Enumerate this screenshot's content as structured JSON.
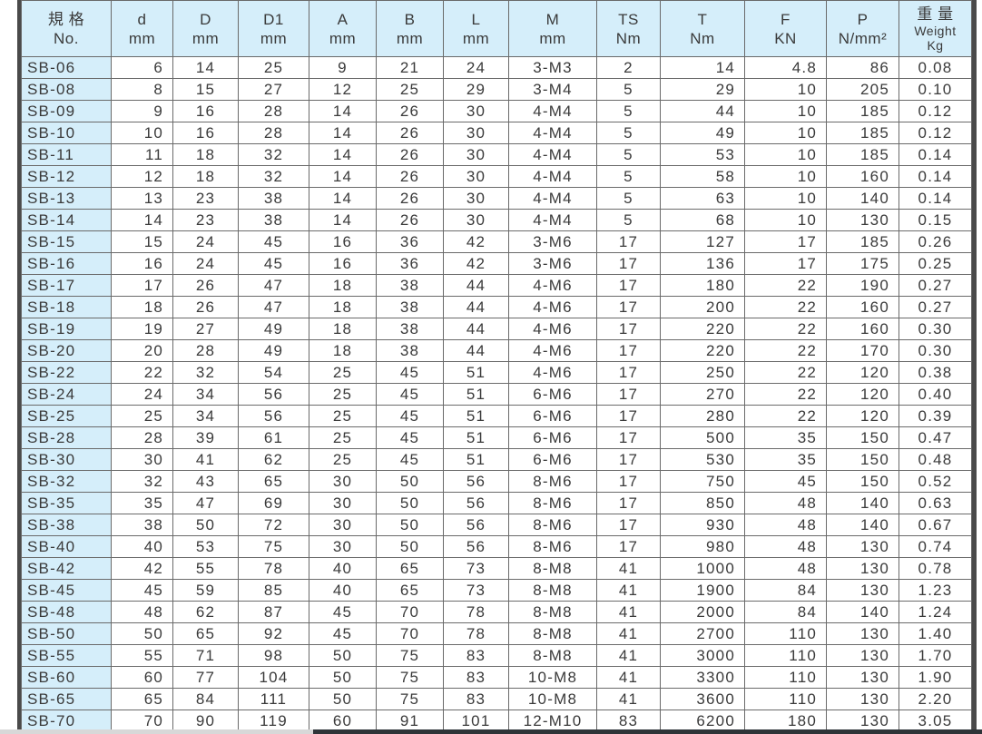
{
  "headers": [
    {
      "line1": "規 格",
      "line2": "No."
    },
    {
      "line1": "d",
      "line2": "mm"
    },
    {
      "line1": "D",
      "line2": "mm"
    },
    {
      "line1": "D1",
      "line2": "mm"
    },
    {
      "line1": "A",
      "line2": "mm"
    },
    {
      "line1": "B",
      "line2": "mm"
    },
    {
      "line1": "L",
      "line2": "mm"
    },
    {
      "line1": "M",
      "line2": "mm"
    },
    {
      "line1": "TS",
      "line2": "Nm"
    },
    {
      "line1": "T",
      "line2": "Nm"
    },
    {
      "line1": "F",
      "line2": "KN"
    },
    {
      "line1": "P",
      "line2": "N/mm²"
    },
    {
      "line1": "重 量",
      "line2": "Weight",
      "line3": "Kg"
    }
  ],
  "rows": [
    [
      "SB-06",
      "6",
      "14",
      "25",
      "9",
      "21",
      "24",
      "3-M3",
      "2",
      "14",
      "4.8",
      "86",
      "0.08"
    ],
    [
      "SB-08",
      "8",
      "15",
      "27",
      "12",
      "25",
      "29",
      "3-M4",
      "5",
      "29",
      "10",
      "205",
      "0.10"
    ],
    [
      "SB-09",
      "9",
      "16",
      "28",
      "14",
      "26",
      "30",
      "4-M4",
      "5",
      "44",
      "10",
      "185",
      "0.12"
    ],
    [
      "SB-10",
      "10",
      "16",
      "28",
      "14",
      "26",
      "30",
      "4-M4",
      "5",
      "49",
      "10",
      "185",
      "0.12"
    ],
    [
      "SB-11",
      "11",
      "18",
      "32",
      "14",
      "26",
      "30",
      "4-M4",
      "5",
      "53",
      "10",
      "185",
      "0.14"
    ],
    [
      "SB-12",
      "12",
      "18",
      "32",
      "14",
      "26",
      "30",
      "4-M4",
      "5",
      "58",
      "10",
      "160",
      "0.14"
    ],
    [
      "SB-13",
      "13",
      "23",
      "38",
      "14",
      "26",
      "30",
      "4-M4",
      "5",
      "63",
      "10",
      "140",
      "0.14"
    ],
    [
      "SB-14",
      "14",
      "23",
      "38",
      "14",
      "26",
      "30",
      "4-M4",
      "5",
      "68",
      "10",
      "130",
      "0.15"
    ],
    [
      "SB-15",
      "15",
      "24",
      "45",
      "16",
      "36",
      "42",
      "3-M6",
      "17",
      "127",
      "17",
      "185",
      "0.26"
    ],
    [
      "SB-16",
      "16",
      "24",
      "45",
      "16",
      "36",
      "42",
      "3-M6",
      "17",
      "136",
      "17",
      "175",
      "0.25"
    ],
    [
      "SB-17",
      "17",
      "26",
      "47",
      "18",
      "38",
      "44",
      "4-M6",
      "17",
      "180",
      "22",
      "190",
      "0.27"
    ],
    [
      "SB-18",
      "18",
      "26",
      "47",
      "18",
      "38",
      "44",
      "4-M6",
      "17",
      "200",
      "22",
      "160",
      "0.27"
    ],
    [
      "SB-19",
      "19",
      "27",
      "49",
      "18",
      "38",
      "44",
      "4-M6",
      "17",
      "220",
      "22",
      "160",
      "0.30"
    ],
    [
      "SB-20",
      "20",
      "28",
      "49",
      "18",
      "38",
      "44",
      "4-M6",
      "17",
      "220",
      "22",
      "170",
      "0.30"
    ],
    [
      "SB-22",
      "22",
      "32",
      "54",
      "25",
      "45",
      "51",
      "4-M6",
      "17",
      "250",
      "22",
      "120",
      "0.38"
    ],
    [
      "SB-24",
      "24",
      "34",
      "56",
      "25",
      "45",
      "51",
      "6-M6",
      "17",
      "270",
      "22",
      "120",
      "0.40"
    ],
    [
      "SB-25",
      "25",
      "34",
      "56",
      "25",
      "45",
      "51",
      "6-M6",
      "17",
      "280",
      "22",
      "120",
      "0.39"
    ],
    [
      "SB-28",
      "28",
      "39",
      "61",
      "25",
      "45",
      "51",
      "6-M6",
      "17",
      "500",
      "35",
      "150",
      "0.47"
    ],
    [
      "SB-30",
      "30",
      "41",
      "62",
      "25",
      "45",
      "51",
      "6-M6",
      "17",
      "530",
      "35",
      "150",
      "0.48"
    ],
    [
      "SB-32",
      "32",
      "43",
      "65",
      "30",
      "50",
      "56",
      "8-M6",
      "17",
      "750",
      "45",
      "150",
      "0.52"
    ],
    [
      "SB-35",
      "35",
      "47",
      "69",
      "30",
      "50",
      "56",
      "8-M6",
      "17",
      "850",
      "48",
      "140",
      "0.63"
    ],
    [
      "SB-38",
      "38",
      "50",
      "72",
      "30",
      "50",
      "56",
      "8-M6",
      "17",
      "930",
      "48",
      "140",
      "0.67"
    ],
    [
      "SB-40",
      "40",
      "53",
      "75",
      "30",
      "50",
      "56",
      "8-M6",
      "17",
      "980",
      "48",
      "130",
      "0.74"
    ],
    [
      "SB-42",
      "42",
      "55",
      "78",
      "40",
      "65",
      "73",
      "8-M8",
      "41",
      "1000",
      "48",
      "130",
      "0.78"
    ],
    [
      "SB-45",
      "45",
      "59",
      "85",
      "40",
      "65",
      "73",
      "8-M8",
      "41",
      "1900",
      "84",
      "130",
      "1.23"
    ],
    [
      "SB-48",
      "48",
      "62",
      "87",
      "45",
      "70",
      "78",
      "8-M8",
      "41",
      "2000",
      "84",
      "140",
      "1.24"
    ],
    [
      "SB-50",
      "50",
      "65",
      "92",
      "45",
      "70",
      "78",
      "8-M8",
      "41",
      "2700",
      "110",
      "130",
      "1.40"
    ],
    [
      "SB-55",
      "55",
      "71",
      "98",
      "50",
      "75",
      "83",
      "8-M8",
      "41",
      "3000",
      "110",
      "130",
      "1.70"
    ],
    [
      "SB-60",
      "60",
      "77",
      "104",
      "50",
      "75",
      "83",
      "10-M8",
      "41",
      "3300",
      "110",
      "130",
      "1.90"
    ],
    [
      "SB-65",
      "65",
      "84",
      "111",
      "50",
      "75",
      "83",
      "10-M8",
      "41",
      "3600",
      "110",
      "130",
      "2.20"
    ],
    [
      "SB-70",
      "70",
      "90",
      "119",
      "60",
      "91",
      "101",
      "12-M10",
      "83",
      "6200",
      "180",
      "130",
      "3.05"
    ]
  ],
  "colors": {
    "header_bg": "#d5eefa",
    "border": "#6a6a6a",
    "frame": "#4a4a4a",
    "text": "#3a3a3a"
  }
}
